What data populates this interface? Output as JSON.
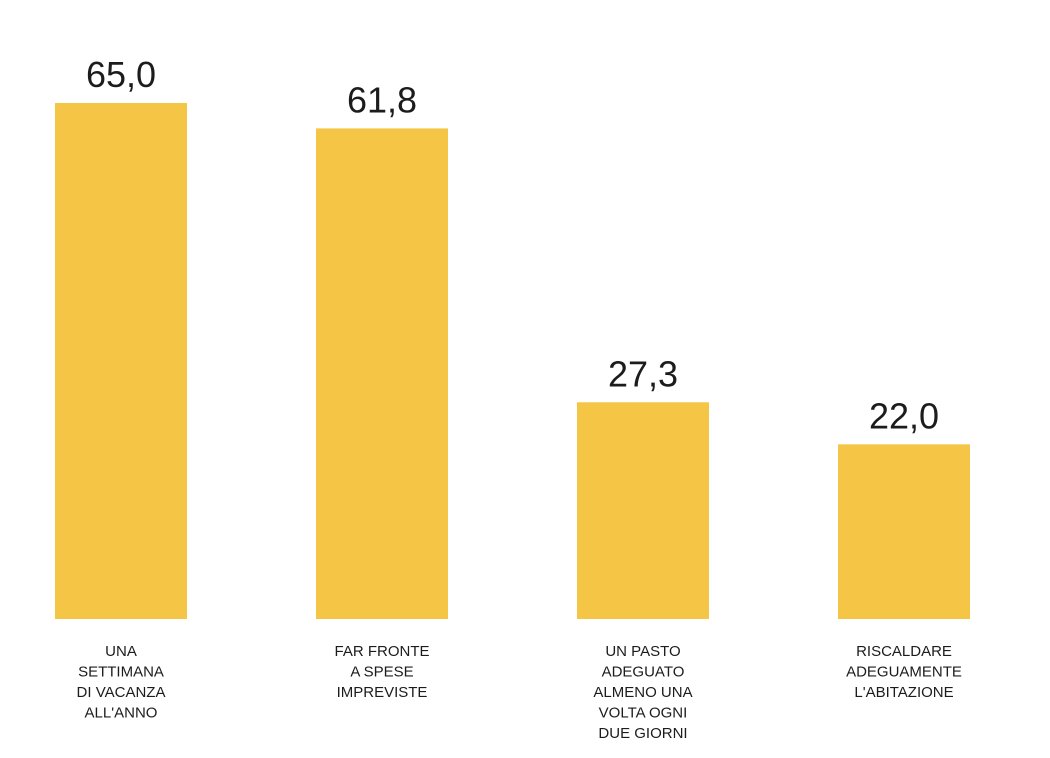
{
  "chart_data": {
    "type": "bar",
    "categories": [
      "UNA SETTIMANA DI VACANZA ALL'ANNO",
      "FAR FRONTE A SPESE IMPREVISTE",
      "UN PASTO ADEGUATO ALMENO UNA VOLTA OGNI DUE GIORNI",
      "RISCALDARE ADEGUAMENTE L'ABITAZIONE"
    ],
    "category_lines": [
      [
        "UNA",
        "SETTIMANA",
        "DI VACANZA",
        "ALL'ANNO"
      ],
      [
        "FAR FRONTE",
        "A SPESE",
        "IMPREVISTE"
      ],
      [
        "UN PASTO",
        "ADEGUATO",
        "ALMENO UNA",
        "VOLTA OGNI",
        "DUE GIORNI"
      ],
      [
        "RISCALDARE",
        "ADEGUAMENTE",
        "L'ABITAZIONE"
      ]
    ],
    "values": [
      65.0,
      61.8,
      27.3,
      22.0
    ],
    "value_labels": [
      "65,0",
      "61,8",
      "27,3",
      "22,0"
    ],
    "title": "",
    "xlabel": "",
    "ylabel": "",
    "ylim": [
      0,
      65
    ],
    "grid": false,
    "legend": "none",
    "bar_color": "#F5C545",
    "text_color": "#1c1c1c"
  }
}
